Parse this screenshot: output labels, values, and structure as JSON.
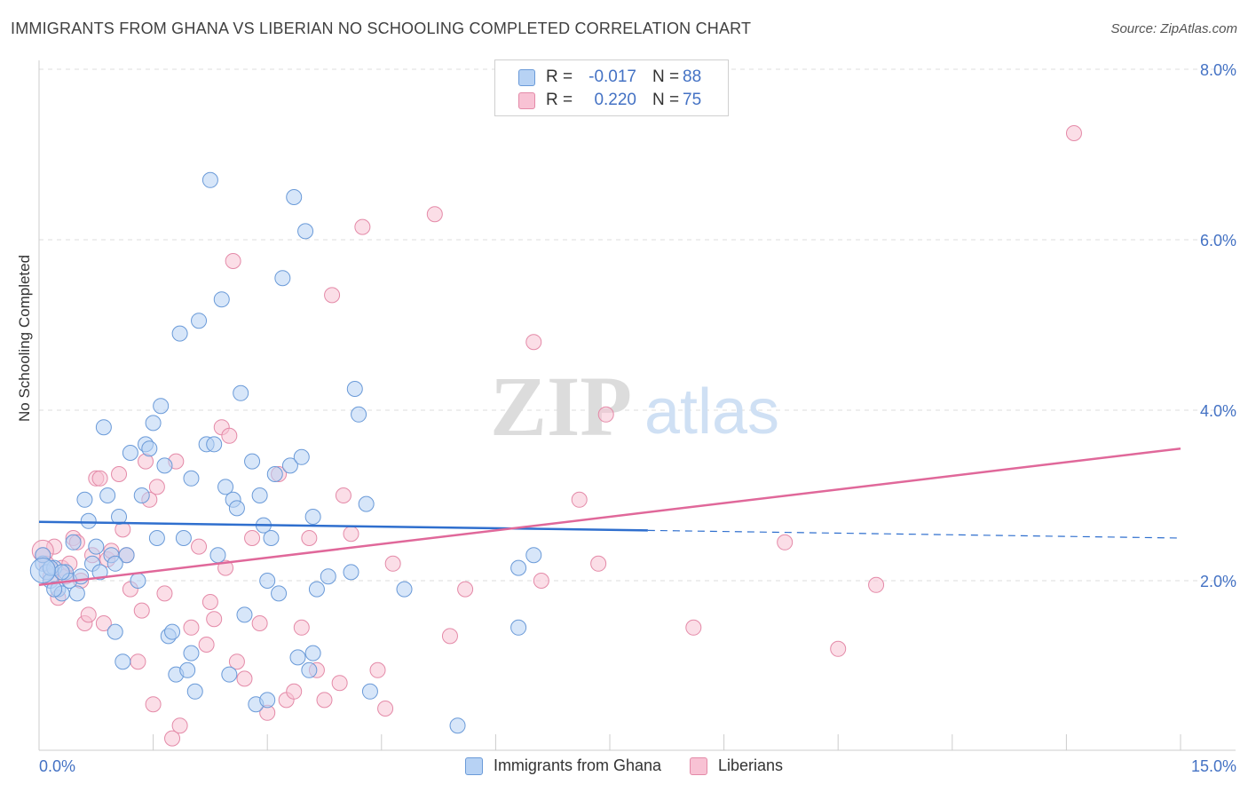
{
  "title": "IMMIGRANTS FROM GHANA VS LIBERIAN NO SCHOOLING COMPLETED CORRELATION CHART",
  "source": "Source: ZipAtlas.com",
  "watermark": {
    "zip": "ZIP",
    "atlas": "atlas"
  },
  "legend_top": [
    {
      "r_label": "R =",
      "r_value": "-0.017",
      "n_label": "N =",
      "n_value": "88",
      "fill": "#b7d2f4",
      "stroke": "#6a9ad8"
    },
    {
      "r_label": "R =",
      "r_value": "0.220",
      "n_label": "N =",
      "n_value": "75",
      "fill": "#f8c2d4",
      "stroke": "#e48aa8"
    }
  ],
  "legend_bottom": [
    {
      "label": "Immigrants from Ghana",
      "fill": "#b7d2f4",
      "stroke": "#6a9ad8"
    },
    {
      "label": "Liberians",
      "fill": "#f8c2d4",
      "stroke": "#e48aa8"
    }
  ],
  "chart_data": {
    "type": "scatter",
    "title": "IMMIGRANTS FROM GHANA VS LIBERIAN NO SCHOOLING COMPLETED CORRELATION CHART",
    "xlabel": "",
    "ylabel": "No Schooling Completed",
    "xlim": [
      0,
      15
    ],
    "ylim": [
      0,
      8.3
    ],
    "x_tick_labels": [
      "0.0%",
      "15.0%"
    ],
    "y_tick_labels": [
      "2.0%",
      "4.0%",
      "6.0%",
      "8.0%"
    ],
    "y_ticks": [
      2,
      4,
      6,
      8
    ],
    "grid": "horizontal dashed",
    "legend_position": "top-center",
    "colors": {
      "ghana": "#6a9ad8",
      "ghana_fill": "#b7d2f4",
      "liberia": "#e48aa8",
      "liberia_fill": "#f8c2d4",
      "ghana_line": "#2f6fce",
      "liberia_line": "#e0689a",
      "axis_text": "#4472c4"
    },
    "series": [
      {
        "name": "Immigrants from Ghana",
        "trend": {
          "x": [
            0,
            8.0
          ],
          "y": [
            2.69,
            2.59
          ],
          "dashed_to": [
            15,
            2.5
          ]
        },
        "points": [
          [
            0.05,
            2.2
          ],
          [
            0.1,
            2.1
          ],
          [
            0.15,
            2.0
          ],
          [
            0.2,
            2.15
          ],
          [
            0.25,
            1.9
          ],
          [
            0.3,
            1.85
          ],
          [
            0.35,
            2.1
          ],
          [
            0.4,
            2.0
          ],
          [
            0.45,
            2.45
          ],
          [
            0.5,
            1.85
          ],
          [
            0.55,
            2.05
          ],
          [
            0.6,
            2.95
          ],
          [
            0.65,
            2.7
          ],
          [
            0.7,
            2.2
          ],
          [
            0.75,
            2.4
          ],
          [
            0.8,
            2.1
          ],
          [
            0.85,
            3.8
          ],
          [
            0.9,
            3.0
          ],
          [
            0.95,
            2.3
          ],
          [
            1.0,
            1.4
          ],
          [
            1.05,
            2.75
          ],
          [
            1.1,
            1.05
          ],
          [
            1.2,
            3.5
          ],
          [
            1.3,
            2.0
          ],
          [
            1.35,
            3.0
          ],
          [
            1.4,
            3.6
          ],
          [
            1.45,
            3.55
          ],
          [
            1.5,
            3.85
          ],
          [
            1.55,
            2.5
          ],
          [
            1.6,
            4.05
          ],
          [
            1.65,
            3.35
          ],
          [
            1.7,
            1.35
          ],
          [
            1.75,
            1.4
          ],
          [
            1.8,
            0.9
          ],
          [
            1.85,
            4.9
          ],
          [
            1.9,
            2.5
          ],
          [
            1.95,
            0.95
          ],
          [
            2.0,
            3.2
          ],
          [
            2.05,
            0.7
          ],
          [
            2.1,
            5.05
          ],
          [
            2.2,
            3.6
          ],
          [
            2.25,
            6.7
          ],
          [
            2.3,
            3.6
          ],
          [
            2.35,
            2.3
          ],
          [
            2.4,
            5.3
          ],
          [
            2.45,
            3.1
          ],
          [
            2.5,
            0.9
          ],
          [
            2.55,
            2.95
          ],
          [
            2.6,
            2.85
          ],
          [
            2.65,
            4.2
          ],
          [
            2.7,
            1.6
          ],
          [
            2.8,
            3.4
          ],
          [
            2.85,
            0.55
          ],
          [
            2.9,
            3.0
          ],
          [
            2.95,
            2.65
          ],
          [
            3.0,
            0.6
          ],
          [
            3.1,
            3.25
          ],
          [
            3.15,
            1.85
          ],
          [
            3.2,
            5.55
          ],
          [
            3.3,
            3.35
          ],
          [
            3.35,
            6.5
          ],
          [
            3.4,
            1.1
          ],
          [
            3.45,
            3.45
          ],
          [
            3.5,
            6.1
          ],
          [
            3.55,
            0.95
          ],
          [
            3.6,
            2.75
          ],
          [
            3.65,
            1.9
          ],
          [
            3.8,
            2.05
          ],
          [
            4.1,
            2.1
          ],
          [
            4.15,
            4.25
          ],
          [
            4.2,
            3.95
          ],
          [
            4.3,
            2.9
          ],
          [
            4.35,
            0.7
          ],
          [
            4.8,
            1.9
          ],
          [
            5.5,
            0.3
          ],
          [
            6.3,
            2.15
          ],
          [
            6.5,
            2.3
          ],
          [
            6.3,
            1.45
          ],
          [
            0.15,
            2.15
          ],
          [
            0.2,
            1.9
          ],
          [
            0.3,
            2.1
          ],
          [
            1.15,
            2.3
          ],
          [
            1.0,
            2.2
          ],
          [
            3.05,
            2.5
          ],
          [
            2.0,
            1.15
          ],
          [
            3.6,
            1.15
          ],
          [
            3.0,
            2.0
          ],
          [
            0.05,
            2.3
          ]
        ]
      },
      {
        "name": "Liberians",
        "trend": {
          "x": [
            0,
            15
          ],
          "y": [
            1.95,
            3.55
          ]
        },
        "points": [
          [
            0.05,
            2.3
          ],
          [
            0.1,
            2.2
          ],
          [
            0.15,
            2.05
          ],
          [
            0.2,
            2.4
          ],
          [
            0.25,
            1.8
          ],
          [
            0.3,
            2.15
          ],
          [
            0.35,
            2.05
          ],
          [
            0.4,
            2.2
          ],
          [
            0.45,
            2.5
          ],
          [
            0.5,
            2.45
          ],
          [
            0.55,
            2.0
          ],
          [
            0.6,
            1.5
          ],
          [
            0.65,
            1.6
          ],
          [
            0.7,
            2.3
          ],
          [
            0.75,
            3.2
          ],
          [
            0.8,
            3.2
          ],
          [
            0.85,
            1.5
          ],
          [
            0.9,
            2.25
          ],
          [
            0.95,
            2.35
          ],
          [
            1.05,
            3.25
          ],
          [
            1.1,
            2.6
          ],
          [
            1.15,
            2.3
          ],
          [
            1.2,
            1.9
          ],
          [
            1.3,
            1.05
          ],
          [
            1.35,
            1.65
          ],
          [
            1.4,
            3.4
          ],
          [
            1.45,
            2.95
          ],
          [
            1.5,
            0.55
          ],
          [
            1.55,
            3.1
          ],
          [
            1.65,
            1.85
          ],
          [
            1.75,
            0.15
          ],
          [
            1.8,
            3.4
          ],
          [
            1.85,
            0.3
          ],
          [
            2.0,
            1.45
          ],
          [
            2.1,
            2.4
          ],
          [
            2.2,
            1.25
          ],
          [
            2.25,
            1.75
          ],
          [
            2.3,
            1.55
          ],
          [
            2.4,
            3.8
          ],
          [
            2.45,
            2.15
          ],
          [
            2.5,
            3.7
          ],
          [
            2.55,
            5.75
          ],
          [
            2.6,
            1.05
          ],
          [
            2.7,
            0.85
          ],
          [
            2.8,
            2.5
          ],
          [
            2.9,
            1.5
          ],
          [
            3.0,
            0.45
          ],
          [
            3.15,
            3.25
          ],
          [
            3.25,
            0.6
          ],
          [
            3.35,
            0.7
          ],
          [
            3.45,
            1.45
          ],
          [
            3.55,
            2.5
          ],
          [
            3.65,
            0.95
          ],
          [
            3.75,
            0.6
          ],
          [
            3.85,
            5.35
          ],
          [
            3.95,
            0.8
          ],
          [
            4.0,
            3.0
          ],
          [
            4.1,
            2.55
          ],
          [
            4.25,
            6.15
          ],
          [
            4.45,
            0.95
          ],
          [
            4.55,
            0.5
          ],
          [
            4.65,
            2.2
          ],
          [
            5.2,
            6.3
          ],
          [
            5.4,
            1.35
          ],
          [
            5.6,
            1.9
          ],
          [
            6.5,
            4.8
          ],
          [
            6.6,
            2.0
          ],
          [
            7.1,
            2.95
          ],
          [
            7.35,
            2.2
          ],
          [
            7.45,
            3.95
          ],
          [
            8.6,
            1.45
          ],
          [
            9.8,
            2.45
          ],
          [
            10.5,
            1.2
          ],
          [
            11.0,
            1.95
          ],
          [
            13.6,
            7.25
          ]
        ]
      }
    ]
  },
  "x_axis": {
    "left_label": "0.0%",
    "right_label": "15.0%"
  }
}
